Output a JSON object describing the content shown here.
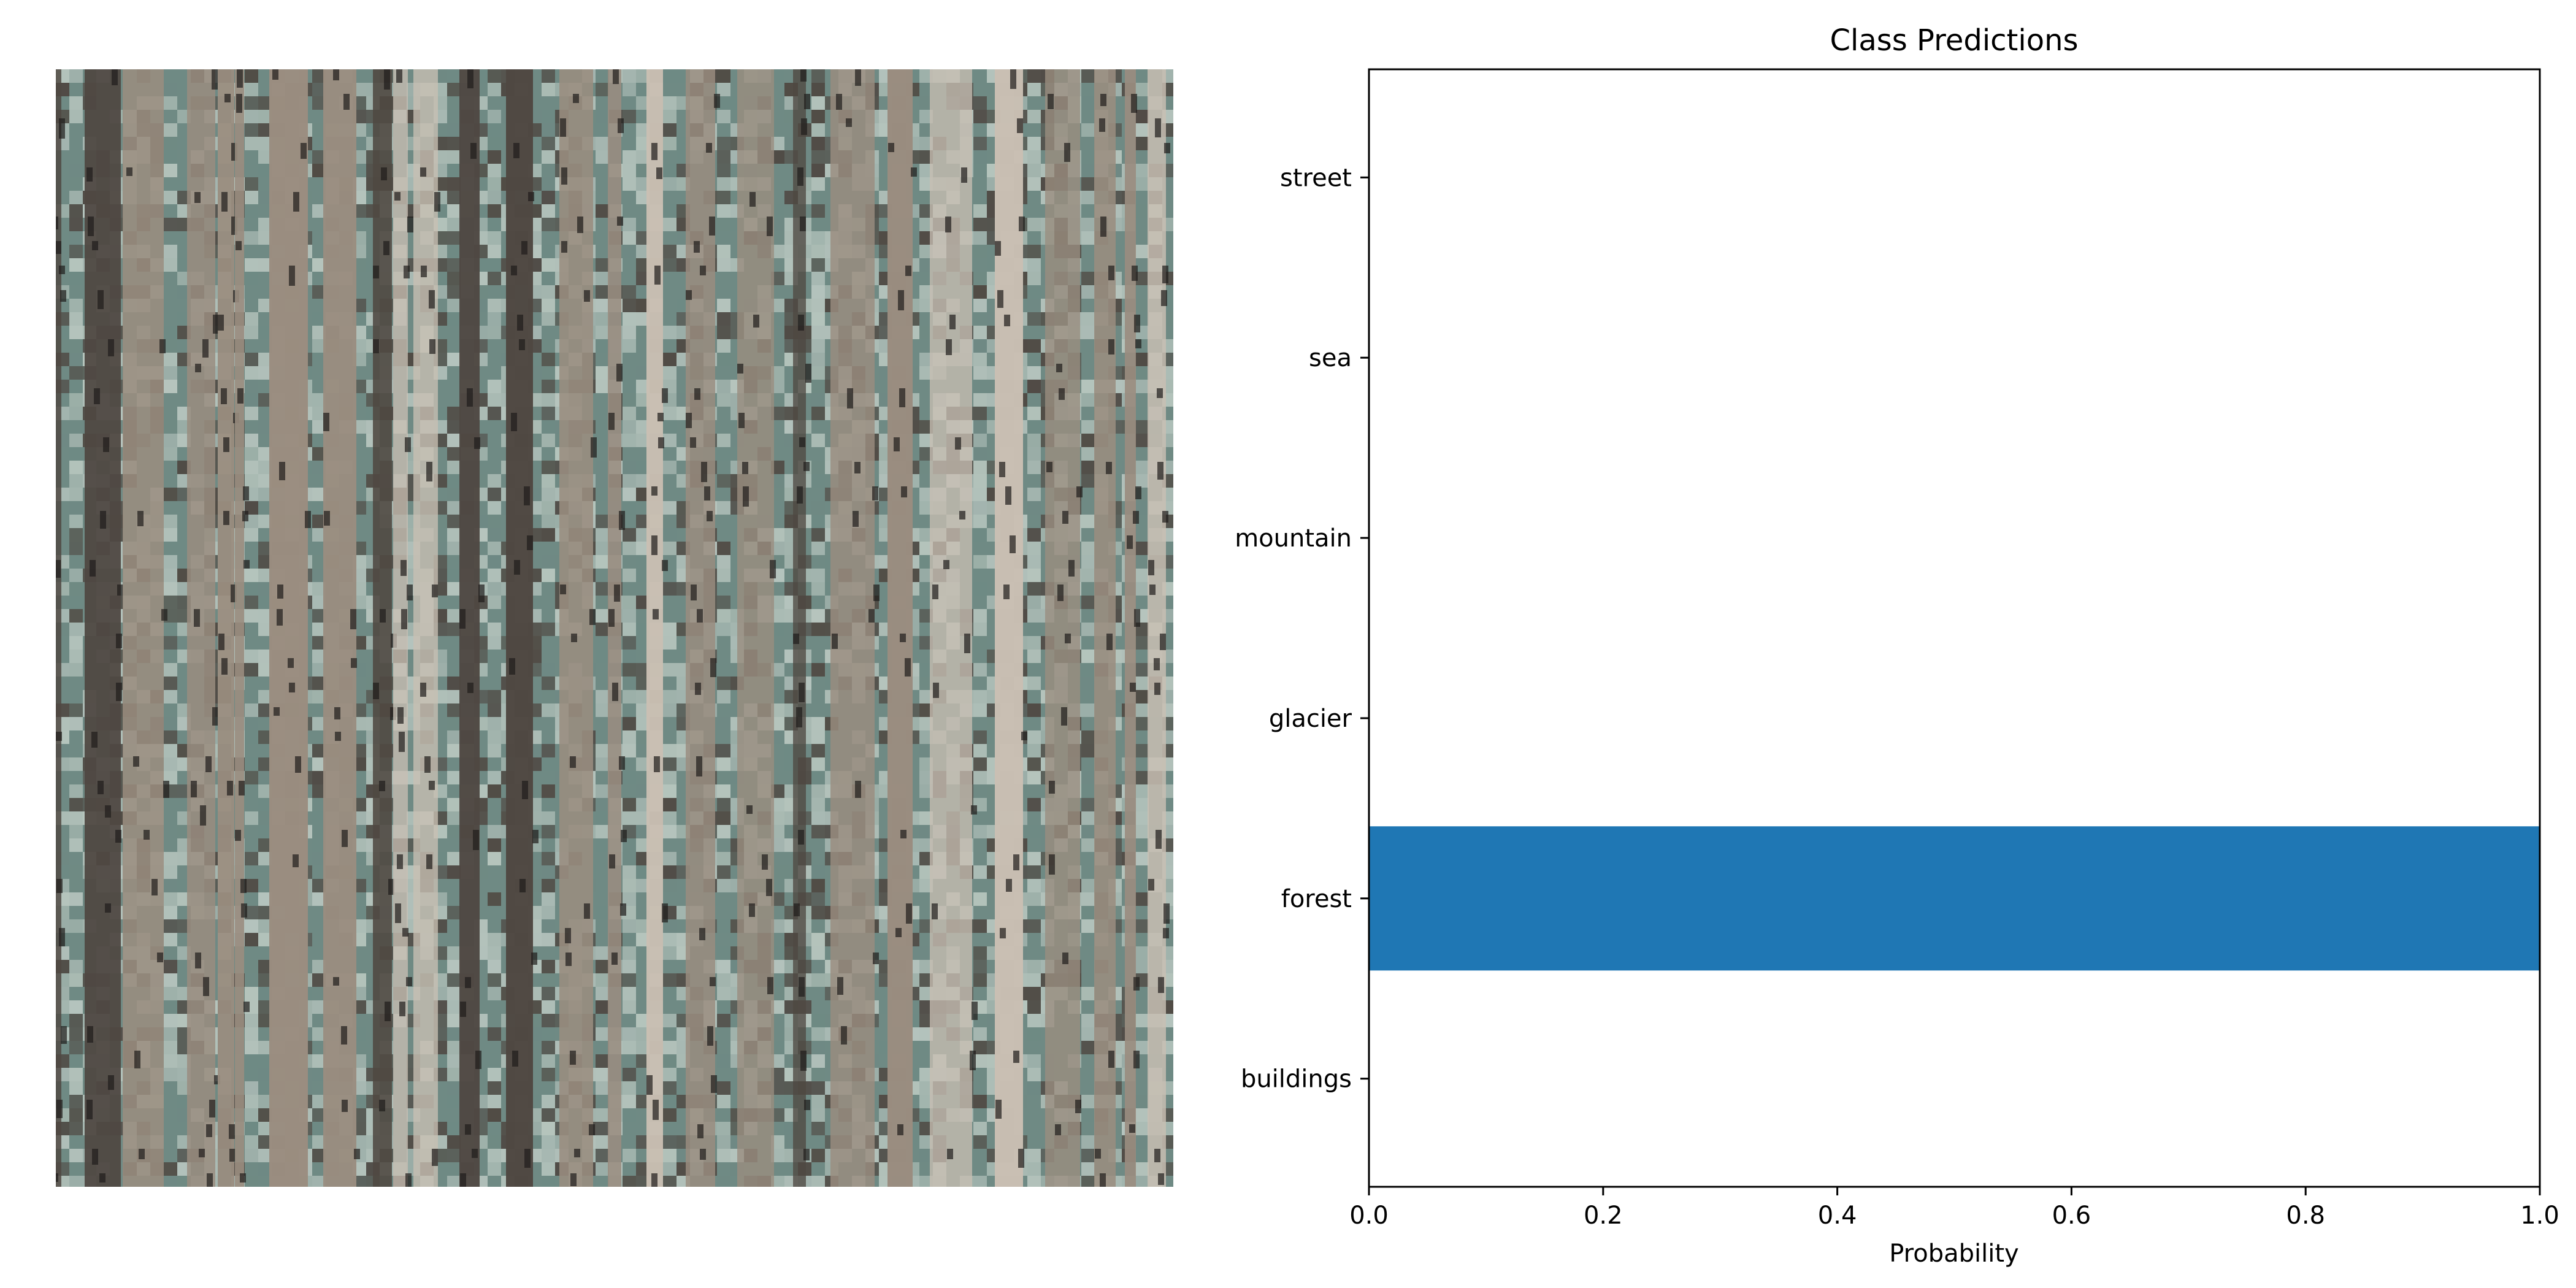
{
  "image_panel": {
    "subject": "forest",
    "palette": {
      "trunk": "#9a8d80",
      "trunk_dark": "#4f4842",
      "trunk_light": "#c9bfb3",
      "foliage": "#6f8a84",
      "foliage_light": "#b9c7c0",
      "shadow": "#1f1d1b"
    }
  },
  "chart_data": {
    "type": "bar",
    "orientation": "horizontal",
    "title": "Class Predictions",
    "xlabel": "Probability",
    "ylabel": "",
    "categories": [
      "buildings",
      "forest",
      "glacier",
      "mountain",
      "sea",
      "street"
    ],
    "values": [
      0.0,
      1.0,
      0.0,
      0.0,
      0.0,
      0.0
    ],
    "xlim": [
      0.0,
      1.0
    ],
    "xticks": [
      "0.0",
      "0.2",
      "0.4",
      "0.6",
      "0.8",
      "1.0"
    ],
    "grid": false,
    "legend": "none",
    "bar_color": "#1f77b4"
  }
}
